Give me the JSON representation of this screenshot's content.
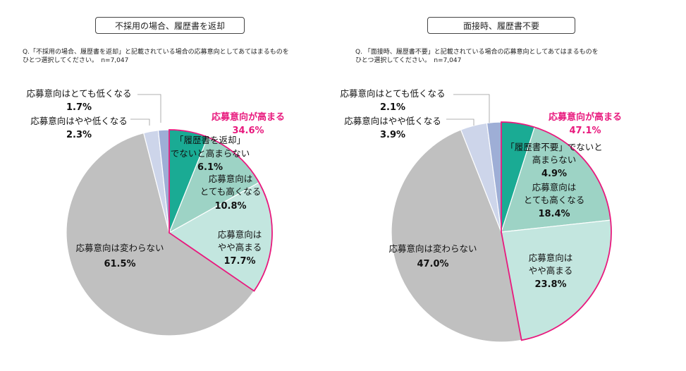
{
  "chart_data": [
    {
      "type": "pie",
      "title": "不採用の場合、履歴書を返却",
      "question": "Q.「不採用の場合、履歴書を返却」と記載されている場合の応募意向としてあてはまるものを\nひとつ選択してください。　n=7,047",
      "highlight_label": "応募意向が高まる",
      "highlight_value": "34.6%",
      "slices": [
        {
          "label": "「履歴書を返却」でないと高まらない",
          "value": 6.1,
          "value_label": "6.1%",
          "color": "#1aab94"
        },
        {
          "label": "応募意向はとても高くなる",
          "value": 10.8,
          "value_label": "10.8%",
          "color": "#9dd3c5"
        },
        {
          "label": "応募意向はやや高まる",
          "value": 17.7,
          "value_label": "17.7%",
          "color": "#c3e6df"
        },
        {
          "label": "応募意向は変わらない",
          "value": 61.5,
          "value_label": "61.5%",
          "color": "#c0c0c0"
        },
        {
          "label": "応募意向はやや低くなる",
          "value": 2.3,
          "value_label": "2.3%",
          "color": "#cdd5ea"
        },
        {
          "label": "応募意向はとても低くなる",
          "value": 1.7,
          "value_label": "1.7%",
          "color": "#9eaed6"
        }
      ],
      "text": {
        "s0": [
          "「履歴書を返却」",
          "でないと高まらない"
        ],
        "s1": [
          "応募意向は",
          "とても高くなる"
        ],
        "s2": [
          "応募意向は",
          "やや高まる"
        ],
        "s3": [
          "応募意向は変わらない"
        ],
        "s4": [
          "応募意向はやや低くなる"
        ],
        "s5": [
          "応募意向はとても低くなる"
        ]
      }
    },
    {
      "type": "pie",
      "title": "面接時、履歴書不要",
      "question": "Q. 「面接時、履歴書不要」と記載されている場合の応募意向としてあてはまるものを\nひとつ選択してください。　n=7,047",
      "highlight_label": "応募意向が高まる",
      "highlight_value": "47.1%",
      "slices": [
        {
          "label": "「履歴書不要」でないと高まらない",
          "value": 4.9,
          "value_label": "4.9%",
          "color": "#1aab94"
        },
        {
          "label": "応募意向はとても高くなる",
          "value": 18.4,
          "value_label": "18.4%",
          "color": "#9dd3c5"
        },
        {
          "label": "応募意向はやや高まる",
          "value": 23.8,
          "value_label": "23.8%",
          "color": "#c3e6df"
        },
        {
          "label": "応募意向は変わらない",
          "value": 47.0,
          "value_label": "47.0%",
          "color": "#c0c0c0"
        },
        {
          "label": "応募意向はやや低くなる",
          "value": 3.9,
          "value_label": "3.9%",
          "color": "#cdd5ea"
        },
        {
          "label": "応募意向はとても低くなる",
          "value": 2.1,
          "value_label": "2.1%",
          "color": "#9eaed6"
        }
      ],
      "text": {
        "s0": [
          "「履歴書不要」でないと",
          "高まらない"
        ],
        "s1": [
          "応募意向は",
          "とても高くなる"
        ],
        "s2": [
          "応募意向は",
          "やや高まる"
        ],
        "s3": [
          "応募意向は変わらない"
        ],
        "s4": [
          "応募意向はやや低くなる"
        ],
        "s5": [
          "応募意向はとても低くなる"
        ]
      }
    }
  ]
}
